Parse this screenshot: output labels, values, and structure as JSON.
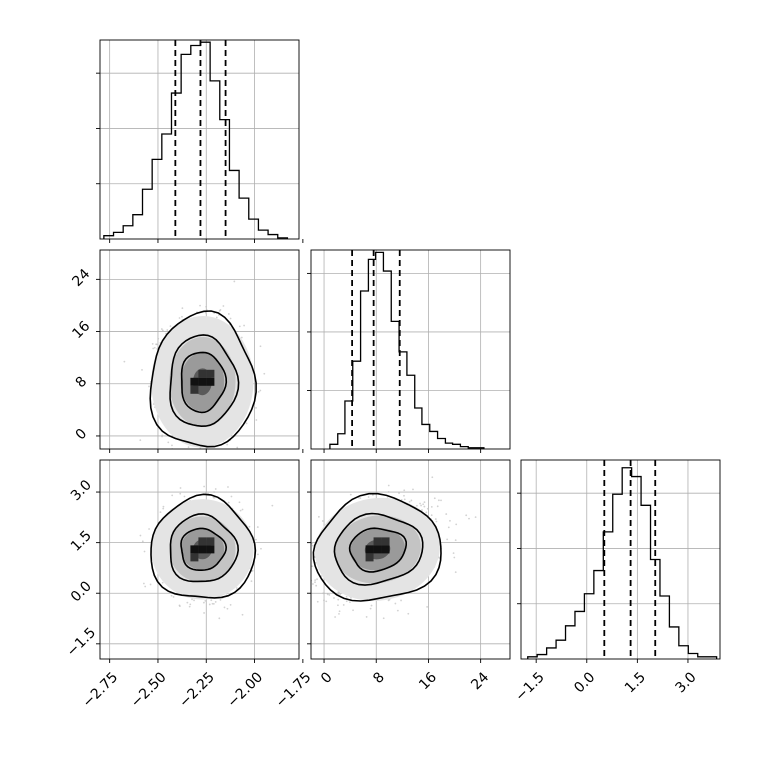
{
  "chart_data": {
    "type": "corner",
    "title": "",
    "xlabel": "",
    "ylabel": "",
    "grid": true,
    "axes_colors": {
      "frame": "#000000",
      "grid": "#b0b0b0",
      "points": "#bfbfbf",
      "line": "#000000"
    },
    "parameters": [
      {
        "xlim": [
          -2.8,
          -1.77
        ],
        "ticks": [
          -2.75,
          -2.5,
          -2.25,
          -2.0,
          -1.75
        ],
        "tick_labels": [
          "−2.75",
          "−2.50",
          "−2.25",
          "−2.00",
          "−1.75"
        ],
        "quantiles": [
          -2.41,
          -2.28,
          -2.15
        ],
        "hist_edges": [
          -2.78,
          -2.73,
          -2.68,
          -2.63,
          -2.58,
          -2.53,
          -2.48,
          -2.43,
          -2.38,
          -2.33,
          -2.28,
          -2.23,
          -2.18,
          -2.13,
          -2.08,
          -2.03,
          -1.98,
          -1.93,
          -1.88,
          -1.83
        ],
        "hist_counts": [
          3,
          6,
          12,
          22,
          45,
          72,
          95,
          132,
          167,
          175,
          178,
          143,
          108,
          62,
          37,
          18,
          8,
          4,
          1
        ],
        "hist_max": 180,
        "hist_yticks": [
          50,
          100,
          150
        ]
      },
      {
        "xlim": [
          -2.0,
          28.5
        ],
        "ticks": [
          0,
          8,
          16,
          24
        ],
        "tick_labels": [
          "0",
          "8",
          "16",
          "24"
        ],
        "quantiles": [
          4.3,
          7.6,
          11.6
        ],
        "hist_edges": [
          0.9,
          2.1,
          3.2,
          4.4,
          5.6,
          6.8,
          7.9,
          9.1,
          10.3,
          11.5,
          12.7,
          13.9,
          15.0,
          16.2,
          17.4,
          18.6,
          19.7,
          20.9,
          22.1,
          23.3,
          24.5
        ],
        "hist_counts": [
          4,
          13,
          41,
          75,
          135,
          162,
          168,
          152,
          109,
          83,
          63,
          35,
          21,
          15,
          9,
          5,
          4,
          2,
          1,
          1
        ],
        "hist_max": 170,
        "hist_yticks": [
          50,
          100,
          150
        ]
      },
      {
        "xlim": [
          -1.95,
          3.95
        ],
        "ticks": [
          -1.5,
          0.0,
          1.5,
          3.0
        ],
        "tick_labels": [
          "−1.5",
          "0.0",
          "1.5",
          "3.0"
        ],
        "quantiles": [
          0.52,
          1.3,
          2.03
        ],
        "hist_edges": [
          -1.75,
          -1.47,
          -1.19,
          -0.91,
          -0.63,
          -0.35,
          -0.07,
          0.21,
          0.49,
          0.77,
          1.05,
          1.33,
          1.61,
          1.89,
          2.17,
          2.45,
          2.73,
          3.01,
          3.29,
          3.57,
          3.85
        ],
        "hist_counts": [
          2,
          4,
          10,
          17,
          30,
          43,
          59,
          80,
          115,
          149,
          173,
          165,
          139,
          90,
          57,
          29,
          12,
          5,
          2,
          2
        ],
        "hist_max": 180,
        "hist_yticks": [
          50,
          100,
          150
        ]
      }
    ],
    "row_tick_labels": {
      "1": [
        "0",
        "8",
        "16",
        "24"
      ],
      "2": [
        "−1.5",
        "0.0",
        "1.5",
        "3.0"
      ]
    },
    "row_ticks": {
      "1": [
        0,
        8,
        16,
        24
      ],
      "2": [
        -1.5,
        0.0,
        1.5,
        3.0
      ]
    },
    "panels_2d": [
      {
        "x_param": 0,
        "y_param": 1,
        "center": [
          -2.27,
          8.3
        ],
        "sd": [
          0.1,
          4.6
        ],
        "rho": -0.05,
        "contours": [
          {
            "level": "outer",
            "rx": 0.27,
            "ry": 10.3
          },
          {
            "level": "mid",
            "rx": 0.175,
            "ry": 7.0
          },
          {
            "level": "inner",
            "rx": 0.115,
            "ry": 4.6
          },
          {
            "level": "core",
            "rx": 0.05,
            "ry": 2.1
          }
        ]
      },
      {
        "x_param": 0,
        "y_param": 2,
        "center": [
          -2.27,
          1.3
        ],
        "sd": [
          0.1,
          0.65
        ],
        "rho": -0.05,
        "contours": [
          {
            "level": "outer",
            "rx": 0.27,
            "ry": 1.52
          },
          {
            "level": "mid",
            "rx": 0.175,
            "ry": 1.0
          },
          {
            "level": "inner",
            "rx": 0.115,
            "ry": 0.62
          },
          {
            "level": "core",
            "rx": 0.05,
            "ry": 0.3
          }
        ]
      },
      {
        "x_param": 1,
        "y_param": 2,
        "center": [
          8.2,
          1.3
        ],
        "sd": [
          4.6,
          0.65
        ],
        "rho": 0.35,
        "contours": [
          {
            "level": "outer",
            "rx": 9.8,
            "ry": 1.55
          },
          {
            "level": "mid",
            "rx": 6.8,
            "ry": 1.02
          },
          {
            "level": "inner",
            "rx": 4.3,
            "ry": 0.63
          },
          {
            "level": "core",
            "rx": 2.0,
            "ry": 0.3
          }
        ]
      }
    ]
  }
}
